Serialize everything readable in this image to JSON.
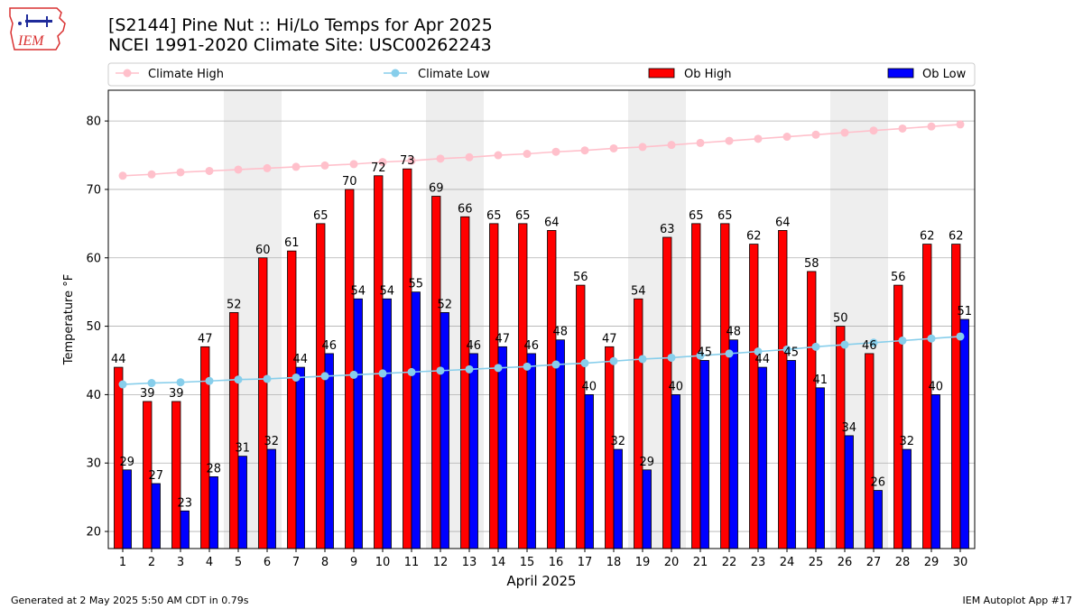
{
  "header": {
    "title_line1": "[S2144] Pine Nut :: Hi/Lo Temps for Apr 2025",
    "title_line2": "NCEI 1991-2020 Climate Site: USC00262243"
  },
  "logo": {
    "text": "IEM"
  },
  "footer": {
    "left": "Generated at 2 May 2025 5:50 AM CDT in 0.79s",
    "right": "IEM Autoplot App #17"
  },
  "colors": {
    "climate_high": "#ffc0cb",
    "climate_low": "#87ceeb",
    "ob_high": "#ff0000",
    "ob_low": "#0000ff",
    "weekend_band": "#eeeeee",
    "grid": "#b0b0b0"
  },
  "chart_data": {
    "type": "bar",
    "xlabel": "April 2025",
    "ylabel": "Temperature °F",
    "ylim": [
      17.5,
      84.5
    ],
    "yticks": [
      20,
      30,
      40,
      50,
      60,
      70,
      80
    ],
    "grid": "horizontal",
    "legend_position": "top",
    "categories": [
      "1",
      "2",
      "3",
      "4",
      "5",
      "6",
      "7",
      "8",
      "9",
      "10",
      "11",
      "12",
      "13",
      "14",
      "15",
      "16",
      "17",
      "18",
      "19",
      "20",
      "21",
      "22",
      "23",
      "24",
      "25",
      "26",
      "27",
      "28",
      "29",
      "30"
    ],
    "shaded_days": [
      5,
      6,
      12,
      13,
      19,
      20,
      26,
      27
    ],
    "series": [
      {
        "name": "Climate High",
        "kind": "line",
        "values": [
          72.0,
          72.2,
          72.5,
          72.7,
          72.9,
          73.1,
          73.3,
          73.5,
          73.7,
          74.0,
          74.2,
          74.5,
          74.7,
          75.0,
          75.2,
          75.5,
          75.7,
          76.0,
          76.2,
          76.5,
          76.8,
          77.1,
          77.4,
          77.7,
          78.0,
          78.3,
          78.6,
          78.9,
          79.2,
          79.5
        ]
      },
      {
        "name": "Climate Low",
        "kind": "line",
        "values": [
          41.5,
          41.7,
          41.8,
          42.0,
          42.2,
          42.3,
          42.5,
          42.7,
          42.9,
          43.1,
          43.3,
          43.5,
          43.7,
          43.9,
          44.1,
          44.4,
          44.6,
          44.9,
          45.2,
          45.4,
          45.7,
          46.0,
          46.3,
          46.6,
          47.0,
          47.3,
          47.6,
          47.9,
          48.2,
          48.5
        ]
      },
      {
        "name": "Ob High",
        "kind": "bar",
        "values": [
          44,
          39,
          39,
          47,
          52,
          60,
          61,
          65,
          70,
          72,
          73,
          69,
          66,
          65,
          65,
          64,
          56,
          47,
          54,
          63,
          65,
          65,
          62,
          64,
          58,
          50,
          46,
          56,
          62,
          62
        ]
      },
      {
        "name": "Ob Low",
        "kind": "bar",
        "values": [
          29,
          27,
          23,
          28,
          31,
          32,
          44,
          46,
          54,
          54,
          55,
          52,
          46,
          47,
          46,
          48,
          40,
          32,
          29,
          40,
          45,
          48,
          44,
          45,
          41,
          34,
          26,
          32,
          40,
          51
        ]
      }
    ]
  }
}
